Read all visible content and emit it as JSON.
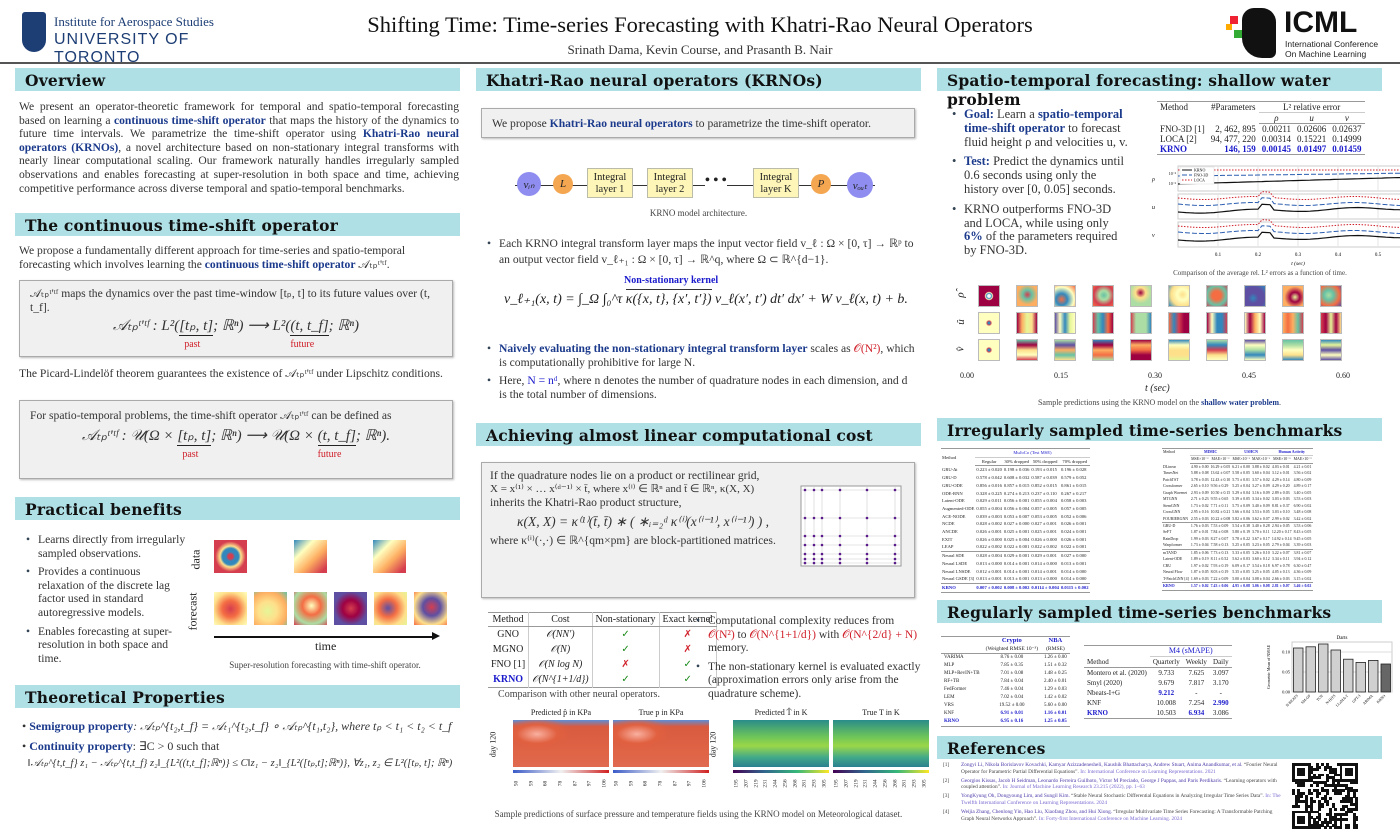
{
  "header": {
    "institute_line1": "Institute for Aerospace Studies",
    "institute_line2": "UNIVERSITY OF TORONTO",
    "title": "Shifting Time: Time-series Forecasting with Khatri-Rao Neural Operators",
    "authors": "Srinath Dama, Kevin Course, and Prasanth B. Nair",
    "conf_logo": "ICML",
    "conf_sub1": "International Conference",
    "conf_sub2": "On Machine Learning"
  },
  "colors": {
    "section_header": "#aee0e6",
    "highlight": "#1b3a8c",
    "emphasis_red": "#d0202a",
    "krno_blue": "#1a1acc"
  },
  "overview": {
    "title": "Overview",
    "t1": "We present an operator-theoretic framework for temporal and spatio-temporal forecasting based on learning a ",
    "h1": "continuous time-shift operator",
    "t2": " that maps the history of the dynamics to future time intervals. We parametrize the time-shift operator using ",
    "h2": "Khatri-Rao neural operators (KRNOs)",
    "t3": ", a novel architecture based on non-stationary integral transforms with nearly linear computational scaling. Our framework naturally handles irregularly sampled observations and enables forecasting at super-resolution in both space and time, achieving competitive performance across diverse temporal and spatio-temporal benchmarks."
  },
  "timeshift": {
    "title": "The continuous time-shift operator",
    "t1": "We propose a fundamentally different approach for time-series and spatio-temporal forecasting which involves learning the ",
    "h1": "continuous time-shift operator",
    "sym": " 𝒜ₜₚᵗ'ᵗᶠ.",
    "box1_text": "𝒜ₜₚᵗ'ᵗᶠ maps the dynamics over the past time-window [tₚ, t] to its future values over (t, t_f].",
    "box1_lhs": "𝒜ₜₚᵗ'ᵗᶠ : L²(",
    "box1_past": "[tₚ, t]",
    "box1_mid": "; ℝⁿ) ⟶ L²(",
    "box1_future": "(t, t_f]",
    "box1_end": "; ℝⁿ)",
    "past": "past",
    "future": "future",
    "picard": "The Picard-Lindelöf theorem guarantees the existence of 𝒜ₜₚᵗ'ᵗᶠ under Lipschitz conditions.",
    "box2_text": "For spatio-temporal problems, the time-shift operator 𝒜ₜₚᵗ'ᵗᶠ can be defined as",
    "box2_lhs": "𝒜ₜₚᵗ'ᵗᶠ : 𝒰(Ω × ",
    "box2_past": "[tₚ, t]",
    "box2_mid": "; ℝⁿ) ⟶ 𝒰(Ω × ",
    "box2_future": "(t, t_f]",
    "box2_end": "; ℝⁿ)."
  },
  "benefits": {
    "title": "Practical benefits",
    "items": [
      "Learns directly from irregularly sampled observations.",
      "Provides a continuous relaxation of the discrete lag factor used in standard autoregressive models.",
      "Enables forecasting at super-resolution in both space and time."
    ],
    "row_data": "data",
    "row_forecast": "forecast",
    "axis": "time",
    "caption": "Super-resolution forecasting with time-shift operator."
  },
  "theory": {
    "title": "Theoretical Properties",
    "semi_label": "Semigroup property",
    "semi_text": ": 𝒜ₜₚ^{t₂,t_f} = 𝒜ₜ₁^{t₂,t_f} ∘ 𝒜ₜₚ^{t₁,t₂}, where tₚ < t₁ < t₂ < t_f",
    "cont_label": "Continuity property",
    "cont_text": ": ∃C > 0 such that",
    "ineq": "‖𝒜ₜₚ^{t,t_f} z₁ − 𝒜ₜₚ^{t,t_f} z₂‖_{L²((t,t_f];ℝⁿ)} ≤ C‖z₁ − z₂‖_{L²([tₚ,t];ℝⁿ)},  ∀z₁, z₂ ∈ L²([tₚ, t]; ℝⁿ)"
  },
  "krno": {
    "title": "Khatri-Rao neural operators (KRNOs)",
    "box_t1": "We propose ",
    "box_h": "Khatri-Rao neural operators",
    "box_t2": " to parametrize the time-shift operator.",
    "arch": {
      "vin": "vᵢₙ",
      "L": "L",
      "l1": "Integral layer 1",
      "l2": "Integral layer 2",
      "dots": "• • •",
      "lk": "Integral layer K",
      "P": "P",
      "vout": "vₒᵤₜ"
    },
    "arch_caption": "KRNO model architecture.",
    "b1": "Each KRNO integral transform layer maps the input vector field v_ℓ : Ω × [0, τ] → ℝᵖ to an output vector field v_ℓ₊₁ : Ω × [0, τ] → ℝ^q, where Ω ⊂ ℝ^{d−1}.",
    "kernel_label": "Non-stationary kernel",
    "eq_lhs": "v_ℓ₊₁(x, t) = ∫_Ω ∫₀^τ ",
    "eq_kernel": "κ({x, t}, {x′, t′})",
    "eq_rhs": " v_ℓ(x′, t′) dt′ dx′ + W v_ℓ(x, t) + b.",
    "b2_h": "Naively evaluating the non-stationary integral transform layer",
    "b2_t": " scales as ",
    "b2_o": "𝒪(N²)",
    "b2_t2": ", which is computationally prohibitive for large N.",
    "b3_t1": "Here, ",
    "b3_h": "N = nᵈ",
    "b3_t2": ", where n denotes the number of quadrature nodes in each dimension, and d is the total number of dimensions."
  },
  "linear": {
    "title": "Achieving almost linear computational cost",
    "l1": "If the quadrature nodes lie on a product or rectilinear grid,",
    "l2": "X = x⁽¹⁾ × … x⁽ᵈ⁻¹⁾ × t̄, where x⁽ⁱ⁾ ∈ ℝⁿ and t̄ ∈ ℝⁿ, κ(X, X)",
    "l3": "inherits the Khatri-Rao product structure,",
    "eq": "κ(X, X) = κ⁽¹⁾(t̄, t̄) ∗ ( ∗ᵢ₌₂ᵈ κ⁽ⁱ⁾(x⁽ⁱ⁻¹⁾, x⁽ⁱ⁻¹⁾) ) ,",
    "l4": "where κ⁽ⁱ⁾(·,·) ∈ ℝ^{qm×pm} are block-partitioned matrices.",
    "table": {
      "headers": [
        "Method",
        "Cost",
        "Non-stationary",
        "Exact kernel"
      ],
      "rows": [
        [
          "GNO",
          "𝒪(NN′)",
          "✓",
          "✗"
        ],
        [
          "MGNO",
          "𝒪(N)",
          "✓",
          "✗"
        ],
        [
          "FNO [1]",
          "𝒪(N log N)",
          "✗",
          "✓"
        ],
        [
          "KRNO",
          "𝒪(N^{1+1/d})",
          "✓",
          "✓"
        ]
      ]
    },
    "table_caption": "Comparison with other neural operators.",
    "b1_t1": "Computational complexity reduces from ",
    "b1_o1": "𝒪(N²)",
    "b1_t2": " to ",
    "b1_o2": "𝒪(N^{1+1/d})",
    "b1_t3": " with ",
    "b1_o3": "𝒪(N^{2/d} + N)",
    "b1_t4": " memory.",
    "b2": "The non-stationary kernel is evaluated exactly (approximation errors only arise from the quadrature scheme).",
    "maps": {
      "p_pred": "Predicted p̂ in KPa",
      "p_true": "True p in KPa",
      "t_pred": "Predicted T̂ in K",
      "t_true": "True T in K",
      "day": "day 120",
      "p_ticks": [
        "50",
        "59",
        "68",
        "78",
        "87",
        "97",
        "106"
      ],
      "t_ticks": [
        "195",
        "207",
        "219",
        "231",
        "244",
        "256",
        "268",
        "281",
        "293",
        "305"
      ]
    },
    "maps_caption": "Sample predictions of surface pressure and temperature fields using the KRNO model on Meteorological dataset."
  },
  "shallow": {
    "title": "Spatio-temporal forecasting: shallow water problem",
    "goal_l": "Goal:",
    "goal_t1": " Learn a ",
    "goal_h": "spatio-temporal time-shift operator",
    "goal_t2": " to forecast fluid height ρ and velocities u, v.",
    "test_l": "Test:",
    "test_t": " Predict the dynamics until 0.6 seconds using only the history over [0, 0.05] seconds.",
    "out_t1": "KRNO outperforms FNO-3D and LOCA, while using only ",
    "out_h": "6%",
    "out_t2": " of the parameters required by FNO-3D.",
    "table": {
      "h_method": "Method",
      "h_params": "#Parameters",
      "h_err": "L² relative error",
      "sub": [
        "ρ",
        "u",
        "v"
      ],
      "rows": [
        [
          "FNO-3D [1]",
          "2, 462, 895",
          "0.00211",
          "0.02606",
          "0.02637"
        ],
        [
          "LOCA [2]",
          "94, 477, 220",
          "0.00314",
          "0.15221",
          "0.14999"
        ],
        [
          "KRNO",
          "146, 159",
          "0.00145",
          "0.01497",
          "0.01459"
        ]
      ]
    },
    "plot": {
      "legend": [
        "KRNO",
        "FNO-3D",
        "LOCA"
      ],
      "rows": [
        "ρ",
        "u",
        "v"
      ],
      "xticks": [
        "0.1",
        "0.2",
        "0.3",
        "0.4",
        "0.5",
        "0.6"
      ],
      "xlabel": "t (sec)",
      "yticks": [
        "10⁻²",
        "10⁻³"
      ]
    },
    "plot_caption": "Comparison of the average rel. L² errors as a function of time.",
    "grid_rows": [
      "ρ̂",
      "û",
      "v̂"
    ],
    "grid_ticks": [
      "0.00",
      "0.15",
      "0.30",
      "0.45",
      "0.60"
    ],
    "grid_xlabel": "t (sec)",
    "caption_t": "Sample predictions using the KRNO model on the ",
    "caption_h": "shallow water problem",
    "caption_end": "."
  },
  "irregular": {
    "title": "Irregularly sampled time-series benchmarks",
    "mujoco": {
      "group": "MuJoCo (Test MSE)",
      "headers": [
        "Method",
        "Regular",
        "30% dropped",
        "50% dropped",
        "70% dropped"
      ],
      "rows": [
        [
          "GRU-Δt",
          "0.223 ± 0.020",
          "0.198 ± 0.036",
          "0.193 ± 0.015",
          "0.196 ± 0.028"
        ],
        [
          "GRU-D",
          "0.578 ± 0.042",
          "0.608 ± 0.032",
          "0.587 ± 0.039",
          "0.579 ± 0.052"
        ],
        [
          "GRU-ODE",
          "0.856 ± 0.016",
          "0.857 ± 0.015",
          "0.852 ± 0.015",
          "0.861 ± 0.015"
        ],
        [
          "ODE-RNN",
          "0.328 ± 0.225",
          "0.274 ± 0.213",
          "0.237 ± 0.110",
          "0.267 ± 0.217"
        ],
        [
          "Latent-ODE",
          "0.029 ± 0.011",
          "0.056 ± 0.001",
          "0.055 ± 0.004",
          "0.058 ± 0.003"
        ],
        [
          "Augmented-ODE",
          "0.055 ± 0.004",
          "0.056 ± 0.004",
          "0.057 ± 0.005",
          "0.057 ± 0.005"
        ],
        [
          "ACE-NODE",
          "0.039 ± 0.003",
          "0.053 ± 0.007",
          "0.053 ± 0.005",
          "0.052 ± 0.006"
        ],
        [
          "NCDE",
          "0.028 ± 0.002",
          "0.027 ± 0.000",
          "0.027 ± 0.001",
          "0.026 ± 0.001"
        ],
        [
          "ANCDE",
          "0.026 ± 0.001",
          "0.025 ± 0.001",
          "0.025 ± 0.001",
          "0.024 ± 0.001"
        ],
        [
          "EXIT",
          "0.026 ± 0.000",
          "0.025 ± 0.004",
          "0.026 ± 0.000",
          "0.026 ± 0.001"
        ],
        [
          "LEAP",
          "0.022 ± 0.002",
          "0.022 ± 0.001",
          "0.022 ± 0.002",
          "0.022 ± 0.001"
        ],
        [
          "Neural SDE",
          "0.028 ± 0.004",
          "0.029 ± 0.001",
          "0.029 ± 0.001",
          "0.027 ± 0.000"
        ],
        [
          "Neural LSDE",
          "0.013 ± 0.000",
          "0.014 ± 0.001",
          "0.014 ± 0.000",
          "0.013 ± 0.001"
        ],
        [
          "Neural LNSDE",
          "0.012 ± 0.001",
          "0.014 ± 0.001",
          "0.014 ± 0.001",
          "0.014 ± 0.000"
        ],
        [
          "Neural GSDE [3]",
          "0.013 ± 0.001",
          "0.013 ± 0.001",
          "0.013 ± 0.000",
          "0.014 ± 0.000"
        ],
        [
          "KRNO",
          "0.007 ± 0.002",
          "0.008 ± 0.002",
          "0.0114 ± 0.004",
          "0.0115 ± 0.002"
        ]
      ]
    },
    "mimic": {
      "groups": [
        "MIMIC",
        "USHCN",
        "Human Activity"
      ],
      "headers": [
        "Method",
        "MSE×10⁻²",
        "MAE×10⁻²",
        "MSE×10⁻¹",
        "MAE×10⁻¹",
        "MSE×10⁻³",
        "MAE×10⁻²"
      ],
      "rows": [
        [
          "DLinear",
          "4.90 ± 0.00",
          "16.29 ± 0.05",
          "6.21 ± 0.00",
          "3.88 ± 0.02",
          "4.03 ± 0.01",
          "4.21 ± 0.01"
        ],
        [
          "TimesNet",
          "5.88 ± 0.08",
          "13.62 ± 0.07",
          "5.58 ± 0.05",
          "3.60 ± 0.04",
          "3.12 ± 0.01",
          "3.56 ± 0.02"
        ],
        [
          "PatchTST",
          "3.78 ± 0.03",
          "12.43 ± 0.10",
          "5.75 ± 0.01",
          "3.57 ± 0.02",
          "4.29 ± 0.14",
          "4.80 ± 0.09"
        ],
        [
          "Crossformer",
          "2.65 ± 0.10",
          "9.56 ± 0.29",
          "5.25 ± 0.04",
          "3.27 ± 0.09",
          "4.29 ± 0.20",
          "4.89 ± 0.17"
        ],
        [
          "Graph Wavenet",
          "2.93 ± 0.09",
          "10.50 ± 0.15",
          "5.29 ± 0.04",
          "3.16 ± 0.09",
          "2.89 ± 0.03",
          "3.40 ± 0.05"
        ],
        [
          "MTGNN",
          "2.71 ± 0.23",
          "9.55 ± 0.65",
          "5.39 ± 0.05",
          "3.34 ± 0.02",
          "3.03 ± 0.03",
          "3.53 ± 0.03"
        ],
        [
          "StemGNN",
          "1.73 ± 0.02",
          "7.71 ± 0.11",
          "5.75 ± 0.09",
          "3.40 ± 0.09",
          "8.81 ± 0.37",
          "6.90 ± 0.02"
        ],
        [
          "CrossGNN",
          "2.95 ± 0.16",
          "10.82 ± 0.21",
          "5.66 ± 0.04",
          "3.53 ± 0.05",
          "3.03 ± 0.10",
          "3.48 ± 0.08"
        ],
        [
          "FOURIERGNN",
          "2.55 ± 0.03",
          "10.22 ± 0.08",
          "5.82 ± 0.06",
          "3.62 ± 0.07",
          "2.99 ± 0.02",
          "3.42 ± 0.02"
        ],
        [
          "GRU-D",
          "1.76 ± 0.03",
          "7.53 ± 0.09",
          "5.54 ± 0.38",
          "3.40 ± 0.28",
          "2.94 ± 0.05",
          "3.53 ± 0.06"
        ],
        [
          "SeFT",
          "1.87 ± 0.01",
          "7.84 ± 0.08",
          "5.80 ± 0.19",
          "3.70 ± 0.11",
          "12.20 ± 0.17",
          "8.43 ± 0.05"
        ],
        [
          "RainDrop",
          "1.99 ± 0.03",
          "8.27 ± 0.07",
          "5.78 ± 0.22",
          "3.67 ± 0.17",
          "14.92 ± 0.14",
          "9.45 ± 0.05"
        ],
        [
          "Warpformer",
          "1.73 ± 0.04",
          "7.58 ± 0.13",
          "5.25 ± 0.05",
          "3.23 ± 0.05",
          "2.79 ± 0.04",
          "3.39 ± 0.03"
        ],
        [
          "mTAND",
          "1.85 ± 0.06",
          "7.73 ± 0.13",
          "5.33 ± 0.05",
          "3.26 ± 0.10",
          "3.22 ± 0.07",
          "3.81 ± 0.07"
        ],
        [
          "Latent-ODE",
          "1.89 ± 0.19",
          "8.11 ± 0.52",
          "5.62 ± 0.03",
          "3.60 ± 0.12",
          "3.34 ± 0.11",
          "3.94 ± 0.12"
        ],
        [
          "CRU",
          "1.97 ± 0.02",
          "7.93 ± 0.19",
          "6.09 ± 0.17",
          "3.54 ± 0.18",
          "6.97 ± 0.78",
          "6.30 ± 0.47"
        ],
        [
          "Neural Flow",
          "1.87 ± 0.05",
          "8.03 ± 0.19",
          "5.35 ± 0.05",
          "3.25 ± 0.05",
          "4.05 ± 0.13",
          "4.36 ± 0.09"
        ],
        [
          "T-PatchGNN [4]",
          "1.69 ± 0.03",
          "7.22 ± 0.09",
          "5.00 ± 0.04",
          "3.08 ± 0.04",
          "2.66 ± 0.03",
          "3.15 ± 0.02"
        ],
        [
          "KRNO",
          "1.57 ± 0.02",
          "7.43 ± 0.06",
          "4.95 ± 0.08",
          "3.06 ± 0.08",
          "2.81 ± 0.07",
          "3.46 ± 0.02"
        ]
      ]
    }
  },
  "regular": {
    "title": "Regularly sampled time-series benchmarks",
    "crypto": {
      "groups": [
        "Crypto",
        "NBA"
      ],
      "sub": [
        "(Weighted RMSE 10⁻³)",
        "(RMSE)"
      ],
      "rows": [
        [
          "VARIMA",
          "8.76 ± 0.00",
          "1.26 ± 0.00"
        ],
        [
          "MLP",
          "7.85 ± 0.35",
          "1.51 ± 0.32"
        ],
        [
          "MLP+RevIN+TB",
          "7.01 ± 0.08",
          "1.48 ± 0.25"
        ],
        [
          "RF+TB",
          "7.84 ± 0.04",
          "2.40 ± 0.01"
        ],
        [
          "FedFormer",
          "7.46 ± 0.04",
          "1.29 ± 0.03"
        ],
        [
          "LEM",
          "7.02 ± 0.04",
          "1.42 ± 0.02"
        ],
        [
          "VRS",
          "19.52 ± 0.00",
          "5.60 ± 0.00"
        ],
        [
          "KNF",
          "6.91 ± 0.01",
          "1.16 ± 0.01"
        ],
        [
          "KRNO",
          "6.95 ± 0.16",
          "1.25 ± 0.05"
        ]
      ]
    },
    "m4": {
      "group": "M4 (sMAPE)",
      "headers": [
        "Method",
        "Quarterly",
        "Weekly",
        "Daily"
      ],
      "rows": [
        [
          "Montero et al. (2020)",
          "9.733",
          "7.625",
          "3.097"
        ],
        [
          "Smyl (2020)",
          "9.679",
          "7.817",
          "3.170"
        ],
        [
          "Nbeats-I+G",
          "9.212",
          "-",
          "-"
        ],
        [
          "KNF",
          "10.008",
          "7.254",
          "2.990"
        ],
        [
          "KRNO",
          "10.503",
          "6.934",
          "3.086"
        ]
      ]
    }
  },
  "chart_data": {
    "type": "bar",
    "title": "Darts",
    "ylabel": "Geometric Mean of NMAE",
    "categories": [
      "N-BEATS",
      "SM-GP",
      "TCN",
      "N-HiTS",
      "LLaMA-2",
      "GPT-3",
      "ARIMA",
      "KRNO"
    ],
    "values": [
      0.11,
      0.113,
      0.12,
      0.105,
      0.082,
      0.074,
      0.079,
      0.07
    ],
    "ylim": [
      0,
      0.125
    ],
    "yticks": [
      "0.00",
      "0.05",
      "0.10"
    ],
    "grid": true
  },
  "references": {
    "title": "References",
    "items": [
      {
        "n": "[1]",
        "authors": "Zongyi Li, Nikola Borislavov Kovachki, Kamyar Azizzadenesheli, Kaushik Bhattacharya, Andrew Stuart, Anima Anandkumar, et al.",
        "title": "“Fourier Neural Operator for Parametric Partial Differential Equations”.",
        "venue": "In: International Conference on Learning Representations. 2021"
      },
      {
        "n": "[2]",
        "authors": "Georgios Kissas, Jacob H Seidman, Leonardo Ferreira Guilhoto, Victor M Preciado, George J Pappas, and Paris Perdikaris.",
        "title": "“Learning operators with coupled attention”.",
        "venue": "In: Journal of Machine Learning Research 23.215 (2022), pp. 1–63"
      },
      {
        "n": "[3]",
        "authors": "YongKyung Oh, Dongyoung Lim, and Sungil Kim.",
        "title": "“Stable Neural Stochastic Differential Equations in Analyzing Irregular Time Series Data”.",
        "venue": "In: The Twelfth International Conference on Learning Representations. 2024"
      },
      {
        "n": "[4]",
        "authors": "Weijia Zhang, Chenlong Yin, Hao Liu, Xiaofang Zhou, and Hui Xiong.",
        "title": "“Irregular Multivariate Time Series Forecasting: A Transformable Patching Graph Neural Networks Approach”.",
        "venue": "In: Forty-first International Conference on Machine Learning. 2024"
      }
    ]
  }
}
